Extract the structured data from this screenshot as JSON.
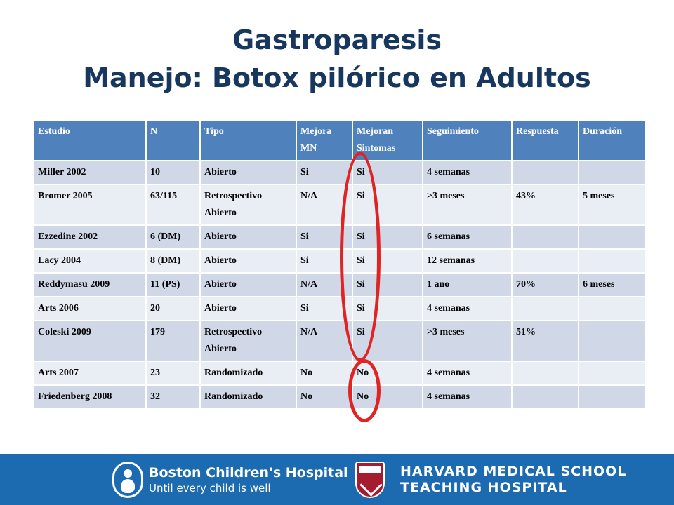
{
  "title": {
    "line1": "Gastroparesis",
    "line2": "Manejo: Botox pilórico en Adultos"
  },
  "table": {
    "headers": [
      "Estudio",
      "N",
      "Tipo",
      "Mejora MN",
      "Mejoran Sintomas",
      "Seguimiento",
      "Respuesta",
      "Duración"
    ],
    "rows": [
      [
        "Miller 2002",
        "10",
        "Abierto",
        "Si",
        "Si",
        "4 semanas",
        "",
        ""
      ],
      [
        "Bromer 2005",
        "63/115",
        "Retrospectivo Abierto",
        "N/A",
        "Si",
        ">3 meses",
        "43%",
        "5 meses"
      ],
      [
        "Ezzedine 2002",
        "6 (DM)",
        "Abierto",
        "Si",
        "Si",
        "6 semanas",
        "",
        ""
      ],
      [
        "Lacy 2004",
        "8 (DM)",
        "Abierto",
        "Si",
        "Si",
        "12 semanas",
        "",
        ""
      ],
      [
        "Reddymasu 2009",
        "11 (PS)",
        "Abierto",
        "N/A",
        "Si",
        "1 ano",
        "70%",
        "6 meses"
      ],
      [
        "Arts 2006",
        "20",
        "Abierto",
        "Si",
        "Si",
        "4 semanas",
        "",
        ""
      ],
      [
        "Coleski 2009",
        "179",
        "Retrospectivo Abierto",
        "N/A",
        "Si",
        ">3 meses",
        "51%",
        ""
      ],
      [
        "Arts 2007",
        "23",
        "Randomizado",
        "No",
        "No",
        "4 semanas",
        "",
        ""
      ],
      [
        "Friedenberg 2008",
        "32",
        "Randomizado",
        "No",
        "No",
        "4 semanas",
        "",
        ""
      ]
    ]
  },
  "highlight_color": "#e02424",
  "footer": {
    "bch_name": "Boston Children's Hospital",
    "bch_tagline": "Until every child is well",
    "hms_line1": "HARVARD MEDICAL SCHOOL",
    "hms_line2": "TEACHING HOSPITAL",
    "background": "#1c6ab0"
  }
}
